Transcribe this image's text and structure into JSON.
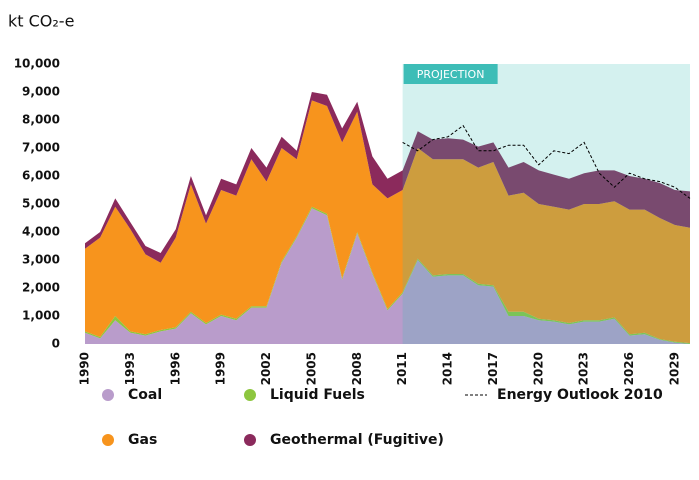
{
  "chart_data": {
    "type": "stacked_area",
    "title": "kt CO₂-e",
    "x": [
      1990,
      1991,
      1992,
      1993,
      1994,
      1995,
      1996,
      1997,
      1998,
      1999,
      2000,
      2001,
      2002,
      2003,
      2004,
      2005,
      2006,
      2007,
      2008,
      2009,
      2010,
      2011,
      2012,
      2013,
      2014,
      2015,
      2016,
      2017,
      2018,
      2019,
      2020,
      2021,
      2022,
      2023,
      2024,
      2025,
      2026,
      2027,
      2028,
      2029,
      2030
    ],
    "xlim": [
      1990,
      2030
    ],
    "xticks": [
      1990,
      1993,
      1996,
      1999,
      2002,
      2005,
      2008,
      2011,
      2014,
      2017,
      2020,
      2023,
      2026,
      2029
    ],
    "ylim": [
      0,
      10000
    ],
    "yticks": [
      0,
      {
        "value": 1000,
        "label": "1,000"
      },
      {
        "value": 2000,
        "label": "2,000"
      },
      {
        "value": 3000,
        "label": "3,000"
      },
      {
        "value": 4000,
        "label": "4,000"
      },
      {
        "value": 5000,
        "label": "5,000"
      },
      {
        "value": 6000,
        "label": "6,000"
      },
      {
        "value": 7000,
        "label": "7,000"
      },
      {
        "value": 8000,
        "label": "8,000"
      },
      {
        "value": 9000,
        "label": "9,000"
      },
      {
        "value": 10000,
        "label": "10,000"
      }
    ],
    "grid": false,
    "series": [
      {
        "name": "Coal",
        "color": "#b99ccb",
        "values": [
          400,
          200,
          850,
          400,
          300,
          450,
          550,
          1100,
          700,
          1000,
          850,
          1300,
          1300,
          2900,
          3800,
          4850,
          4600,
          2300,
          3950,
          2500,
          1200,
          1800,
          3000,
          2400,
          2450,
          2450,
          2100,
          2050,
          1000,
          1000,
          850,
          800,
          700,
          800,
          800,
          900,
          300,
          350,
          150,
          50,
          0
        ]
      },
      {
        "name": "Liquid Fuels",
        "color": "#8dc63f",
        "values": [
          50,
          50,
          150,
          50,
          50,
          50,
          50,
          50,
          50,
          50,
          50,
          50,
          50,
          50,
          50,
          50,
          50,
          50,
          50,
          50,
          50,
          50,
          50,
          50,
          50,
          50,
          50,
          50,
          150,
          150,
          50,
          50,
          50,
          50,
          50,
          50,
          50,
          50,
          30,
          30,
          30
        ]
      },
      {
        "name": "Gas",
        "color": "#f7941d",
        "values": [
          2950,
          3550,
          3900,
          3650,
          2850,
          2400,
          3200,
          4550,
          3550,
          4450,
          4400,
          5250,
          4450,
          4050,
          2750,
          3800,
          3850,
          4850,
          4300,
          3150,
          3950,
          3650,
          3950,
          4150,
          4100,
          4100,
          4150,
          4400,
          4150,
          4250,
          4100,
          4050,
          4050,
          4150,
          4150,
          4150,
          4450,
          4400,
          4320,
          4170,
          4120
        ]
      },
      {
        "name": "Geothermal (Fugitive)",
        "color": "#8b2a5c",
        "values": [
          200,
          200,
          300,
          250,
          300,
          350,
          300,
          300,
          300,
          400,
          400,
          400,
          500,
          400,
          300,
          300,
          400,
          500,
          350,
          1000,
          700,
          700,
          600,
          700,
          750,
          700,
          750,
          700,
          1000,
          1100,
          1200,
          1150,
          1100,
          1100,
          1200,
          1100,
          1200,
          1100,
          1250,
          1250,
          1300
        ]
      }
    ],
    "line": {
      "name": "Energy Outlook 2010",
      "color": "#000000",
      "values": [
        null,
        null,
        null,
        null,
        null,
        null,
        null,
        null,
        null,
        null,
        null,
        null,
        null,
        null,
        null,
        null,
        null,
        null,
        null,
        null,
        null,
        7200,
        6900,
        7300,
        7400,
        7800,
        6900,
        6900,
        7100,
        7100,
        6400,
        6900,
        6800,
        7200,
        6100,
        5600,
        6100,
        5900,
        5800,
        5600,
        5200
      ]
    },
    "annotation": {
      "label": "PROJECTION",
      "start": 2011,
      "color": "#3dbdb7"
    }
  }
}
